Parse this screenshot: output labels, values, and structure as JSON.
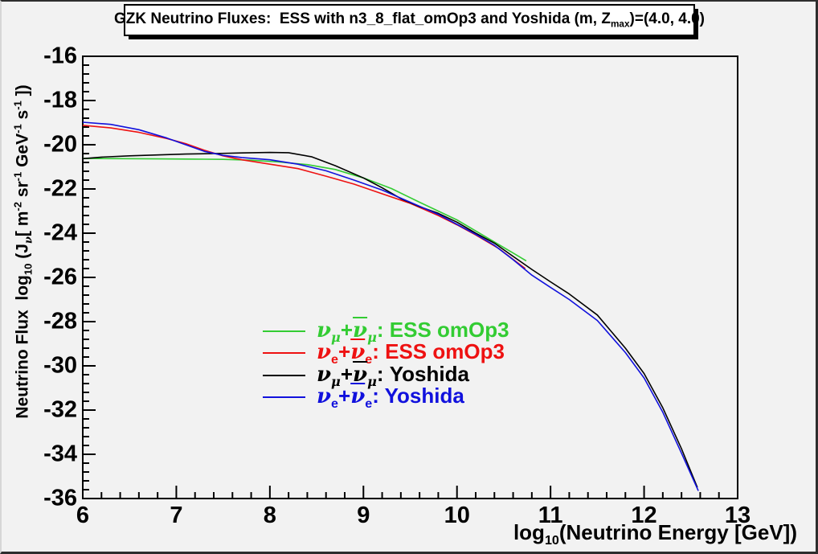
{
  "title": {
    "segments": [
      {
        "t": "GZK Neutrino Fluxes:  ESS with n3_8_flat_omOp3 and Yoshida (m, Z"
      },
      {
        "t": "max",
        "s": "sub"
      },
      {
        "t": ")=(4.0, 4.0)"
      }
    ]
  },
  "axes": {
    "x": {
      "title_segments": [
        {
          "t": "log"
        },
        {
          "t": "10",
          "s": "sub"
        },
        {
          "t": "(Neutrino Energy [GeV])"
        }
      ],
      "major_ticks": [
        6,
        7,
        8,
        9,
        10,
        11,
        12,
        13
      ],
      "minor_step": 0.2
    },
    "y": {
      "title_segments": [
        {
          "t": "Neutrino Flux  log"
        },
        {
          "t": "10",
          "s": "sub"
        },
        {
          "t": " (J"
        },
        {
          "t": "ν",
          "s": "sub",
          "c": "nu"
        },
        {
          "t": "[ m"
        },
        {
          "t": "-2",
          "s": "sup"
        },
        {
          "t": " sr"
        },
        {
          "t": "-1",
          "s": "sup"
        },
        {
          "t": " GeV"
        },
        {
          "t": "-1",
          "s": "sup"
        },
        {
          "t": " s"
        },
        {
          "t": "-1",
          "s": "sup"
        },
        {
          "t": " ])"
        }
      ],
      "major_ticks": [
        -16,
        -18,
        -20,
        -22,
        -24,
        -26,
        -28,
        -30,
        -32,
        -34,
        -36
      ],
      "minor_step": 0.4
    }
  },
  "legend": {
    "items": [
      {
        "color": "#33cc33",
        "segments": [
          {
            "t": "ν",
            "c": "nu"
          },
          {
            "t": "μ",
            "s": "sub",
            "c": "nu"
          },
          {
            "t": "+"
          },
          {
            "t": "ν",
            "c": "nu",
            "bar": true
          },
          {
            "t": "μ",
            "s": "sub",
            "c": "nu"
          },
          {
            "t": ": ESS omOp3"
          }
        ]
      },
      {
        "color": "#ee1111",
        "segments": [
          {
            "t": "ν",
            "c": "nu"
          },
          {
            "t": "e",
            "s": "sub"
          },
          {
            "t": "+"
          },
          {
            "t": "ν",
            "c": "nu",
            "bar": true
          },
          {
            "t": "e",
            "s": "sub"
          },
          {
            "t": ": ESS omOp3"
          }
        ]
      },
      {
        "color": "#000000",
        "segments": [
          {
            "t": "ν",
            "c": "nu"
          },
          {
            "t": "μ",
            "s": "sub",
            "c": "nu"
          },
          {
            "t": "+"
          },
          {
            "t": "ν",
            "c": "nu",
            "bar": true
          },
          {
            "t": "μ",
            "s": "sub",
            "c": "nu"
          },
          {
            "t": ": Yoshida"
          }
        ]
      },
      {
        "color": "#1111dd",
        "segments": [
          {
            "t": "ν",
            "c": "nu"
          },
          {
            "t": "e",
            "s": "sub"
          },
          {
            "t": "+"
          },
          {
            "t": "ν",
            "c": "nu",
            "bar": true
          },
          {
            "t": "e",
            "s": "sub"
          },
          {
            "t": ": Yoshida"
          }
        ]
      }
    ]
  },
  "chart_data": {
    "type": "line",
    "title": "GZK Neutrino Fluxes:  ESS with n3_8_flat_omOp3 and Yoshida (m, Zmax)=(4.0, 4.0)",
    "xlabel": "log10(Neutrino Energy [GeV])",
    "ylabel": "Neutrino Flux log10 (Jnu[ m^-2 sr^-1 GeV^-1 s^-1 ])",
    "xlim": [
      6,
      13
    ],
    "ylim": [
      -36,
      -16
    ],
    "grid": false,
    "legend_position": "center",
    "series": [
      {
        "name": "nu_mu + anti-nu_mu : ESS omOp3",
        "color": "#33cc33",
        "points": [
          [
            6.0,
            -20.62
          ],
          [
            6.4,
            -20.63
          ],
          [
            6.8,
            -20.64
          ],
          [
            7.2,
            -20.65
          ],
          [
            7.5,
            -20.66
          ],
          [
            7.8,
            -20.7
          ],
          [
            8.1,
            -20.78
          ],
          [
            8.4,
            -20.9
          ],
          [
            8.7,
            -21.12
          ],
          [
            9.0,
            -21.5
          ],
          [
            9.3,
            -21.98
          ],
          [
            9.6,
            -22.6
          ],
          [
            9.8,
            -23.0
          ],
          [
            10.0,
            -23.4
          ],
          [
            10.2,
            -23.9
          ],
          [
            10.4,
            -24.4
          ],
          [
            10.6,
            -24.9
          ],
          [
            10.74,
            -25.25
          ]
        ]
      },
      {
        "name": "nu_e + anti-nu_e : ESS omOp3",
        "color": "#ee1111",
        "points": [
          [
            6.0,
            -19.12
          ],
          [
            6.3,
            -19.24
          ],
          [
            6.6,
            -19.44
          ],
          [
            6.9,
            -19.72
          ],
          [
            7.1,
            -19.95
          ],
          [
            7.3,
            -20.25
          ],
          [
            7.5,
            -20.5
          ],
          [
            7.7,
            -20.68
          ],
          [
            8.0,
            -20.88
          ],
          [
            8.3,
            -21.08
          ],
          [
            8.6,
            -21.42
          ],
          [
            8.9,
            -21.78
          ],
          [
            9.2,
            -22.22
          ],
          [
            9.5,
            -22.65
          ],
          [
            9.8,
            -23.2
          ],
          [
            10.0,
            -23.62
          ],
          [
            10.2,
            -24.08
          ],
          [
            10.45,
            -24.7
          ],
          [
            10.73,
            -25.6
          ]
        ]
      },
      {
        "name": "nu_mu + anti-nu_mu : Yoshida",
        "color": "#000000",
        "points": [
          [
            6.0,
            -20.63
          ],
          [
            6.2,
            -20.56
          ],
          [
            6.5,
            -20.5
          ],
          [
            6.8,
            -20.46
          ],
          [
            7.1,
            -20.42
          ],
          [
            7.4,
            -20.4
          ],
          [
            7.7,
            -20.37
          ],
          [
            8.0,
            -20.35
          ],
          [
            8.2,
            -20.36
          ],
          [
            8.45,
            -20.55
          ],
          [
            8.7,
            -20.95
          ],
          [
            9.0,
            -21.5
          ],
          [
            9.2,
            -21.95
          ],
          [
            9.4,
            -22.44
          ],
          [
            9.6,
            -22.8
          ],
          [
            9.8,
            -23.1
          ],
          [
            10.0,
            -23.5
          ],
          [
            10.2,
            -24.0
          ],
          [
            10.4,
            -24.45
          ],
          [
            10.6,
            -25.05
          ],
          [
            10.8,
            -25.64
          ],
          [
            11.0,
            -26.2
          ],
          [
            11.2,
            -26.75
          ],
          [
            11.5,
            -27.7
          ],
          [
            11.8,
            -29.2
          ],
          [
            12.0,
            -30.35
          ],
          [
            12.2,
            -31.9
          ],
          [
            12.4,
            -33.75
          ],
          [
            12.57,
            -35.5
          ]
        ]
      },
      {
        "name": "nu_e + anti-nu_e : Yoshida",
        "color": "#1111dd",
        "points": [
          [
            6.0,
            -18.98
          ],
          [
            6.3,
            -19.08
          ],
          [
            6.6,
            -19.32
          ],
          [
            6.9,
            -19.7
          ],
          [
            7.1,
            -20.0
          ],
          [
            7.3,
            -20.3
          ],
          [
            7.5,
            -20.48
          ],
          [
            7.7,
            -20.58
          ],
          [
            8.0,
            -20.68
          ],
          [
            8.3,
            -20.88
          ],
          [
            8.6,
            -21.18
          ],
          [
            8.9,
            -21.6
          ],
          [
            9.2,
            -22.05
          ],
          [
            9.5,
            -22.6
          ],
          [
            9.8,
            -23.15
          ],
          [
            10.0,
            -23.6
          ],
          [
            10.2,
            -24.05
          ],
          [
            10.4,
            -24.55
          ],
          [
            10.6,
            -25.2
          ],
          [
            10.8,
            -25.9
          ],
          [
            11.0,
            -26.45
          ],
          [
            11.2,
            -27.0
          ],
          [
            11.5,
            -27.95
          ],
          [
            11.8,
            -29.4
          ],
          [
            12.0,
            -30.55
          ],
          [
            12.2,
            -32.1
          ],
          [
            12.4,
            -33.95
          ],
          [
            12.58,
            -35.65
          ]
        ]
      }
    ]
  }
}
